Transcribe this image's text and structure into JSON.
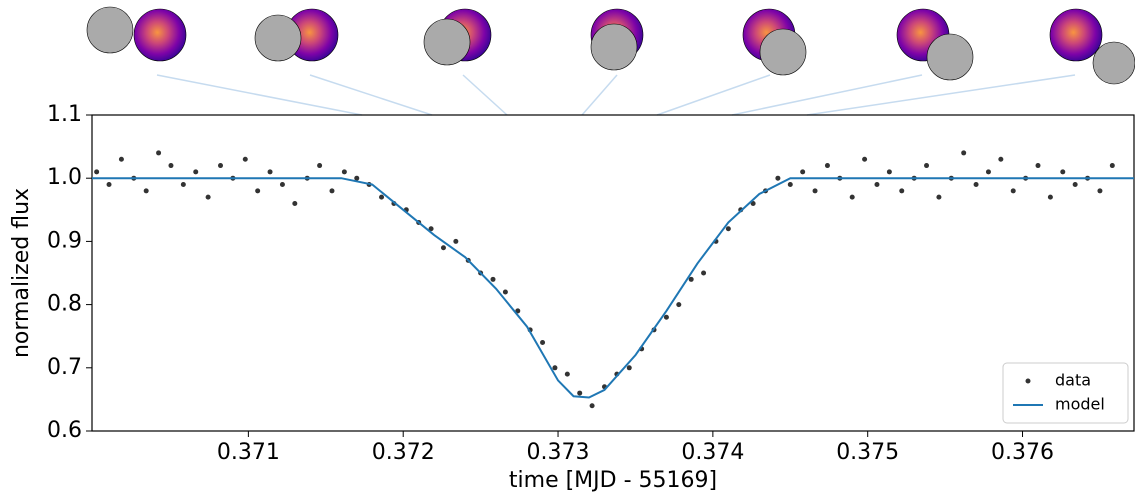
{
  "chart_data": {
    "type": "scatter",
    "xlabel": "time [MJD - 55169]",
    "ylabel": "normalized flux",
    "xlim": [
      0.36999,
      0.37672
    ],
    "ylim": [
      0.6,
      1.1
    ],
    "xticks": [
      0.371,
      0.372,
      0.373,
      0.374,
      0.375,
      0.376
    ],
    "yticks": [
      0.6,
      0.7,
      0.8,
      0.9,
      {
        "value": 1,
        "label": "1.0"
      },
      1.1
    ],
    "legend": "lower right",
    "series": [
      {
        "name": "data",
        "type": "scatter",
        "color": "#333333",
        "x": [
          0.37002,
          0.3701,
          0.37018,
          0.37026,
          0.37034,
          0.37042,
          0.3705,
          0.37058,
          0.37066,
          0.37074,
          0.37082,
          0.3709,
          0.37098,
          0.37106,
          0.37114,
          0.37122,
          0.3713,
          0.37138,
          0.37146,
          0.37154,
          0.37162,
          0.3717,
          0.37178,
          0.37186,
          0.37194,
          0.37202,
          0.3721,
          0.37218,
          0.37226,
          0.37234,
          0.37242,
          0.3725,
          0.37258,
          0.37266,
          0.37274,
          0.37282,
          0.3729,
          0.37298,
          0.37306,
          0.37314,
          0.37322,
          0.3733,
          0.37338,
          0.37346,
          0.37354,
          0.37362,
          0.3737,
          0.37378,
          0.37386,
          0.37394,
          0.37402,
          0.3741,
          0.37418,
          0.37426,
          0.37434,
          0.37442,
          0.3745,
          0.37458,
          0.37466,
          0.37474,
          0.37482,
          0.3749,
          0.37498,
          0.37506,
          0.37514,
          0.37522,
          0.3753,
          0.37538,
          0.37546,
          0.37554,
          0.37562,
          0.3757,
          0.37578,
          0.37586,
          0.37594,
          0.37602,
          0.3761,
          0.37618,
          0.37626,
          0.37634,
          0.37642,
          0.3765,
          0.37658
        ],
        "values": [
          1.01,
          0.99,
          1.03,
          1.0,
          0.98,
          1.04,
          1.02,
          0.99,
          1.01,
          0.97,
          1.02,
          1.0,
          1.03,
          0.98,
          1.01,
          0.99,
          0.96,
          1.0,
          1.02,
          0.98,
          1.01,
          1.0,
          0.99,
          0.97,
          0.96,
          0.95,
          0.93,
          0.92,
          0.89,
          0.9,
          0.87,
          0.85,
          0.84,
          0.82,
          0.79,
          0.76,
          0.74,
          0.7,
          0.69,
          0.66,
          0.64,
          0.67,
          0.69,
          0.7,
          0.73,
          0.76,
          0.78,
          0.8,
          0.84,
          0.85,
          0.9,
          0.92,
          0.95,
          0.96,
          0.98,
          1.0,
          0.99,
          1.01,
          0.98,
          1.02,
          1.0,
          0.97,
          1.03,
          0.99,
          1.01,
          0.98,
          1.0,
          1.02,
          0.97,
          1.0,
          1.04,
          0.99,
          1.01,
          1.03,
          0.98,
          1.0,
          1.02,
          0.97,
          1.01,
          0.99,
          1.0,
          0.98,
          1.02
        ]
      },
      {
        "name": "model",
        "type": "line",
        "color": "#1f77b4",
        "x": [
          0.36999,
          0.3716,
          0.3718,
          0.372,
          0.3722,
          0.3724,
          0.3726,
          0.3728,
          0.373,
          0.3731,
          0.3732,
          0.3733,
          0.3735,
          0.3737,
          0.3739,
          0.3741,
          0.3743,
          0.3745,
          0.37672
        ],
        "values": [
          1.0,
          1.0,
          0.99,
          0.95,
          0.91,
          0.875,
          0.825,
          0.765,
          0.68,
          0.655,
          0.653,
          0.665,
          0.72,
          0.79,
          0.865,
          0.93,
          0.975,
          1.0,
          1.0
        ]
      }
    ]
  }
}
